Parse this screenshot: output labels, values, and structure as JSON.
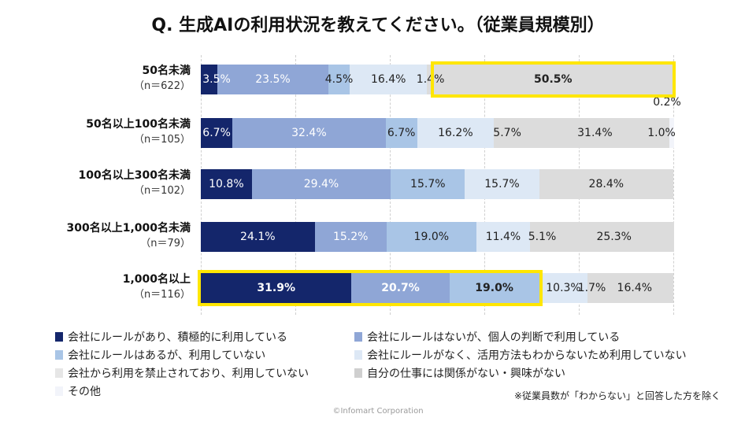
{
  "title": "Q. 生成AIの利用状況を教えてください。（従業員規模別）",
  "note": "※従業員数が「わからない」と回答した方を除く",
  "copyright": "©Infomart Corporation",
  "colors": [
    "#14266b",
    "#8fa6d6",
    "#a9c5e6",
    "#dde8f5",
    "#dcdcdc",
    "#dcdcdc",
    "#f2f4fa"
  ],
  "chart_data": {
    "type": "bar",
    "orientation": "horizontal-stacked-100",
    "categories": [
      {
        "label": "50名未満",
        "n": "（n＝622）"
      },
      {
        "label": "50名以上100名未満",
        "n": "（n＝105）"
      },
      {
        "label": "100名以上300名未満",
        "n": "（n＝102）"
      },
      {
        "label": "300名以上1,000名未満",
        "n": "（n＝79）"
      },
      {
        "label": "1,000名以上",
        "n": "（n＝116）"
      }
    ],
    "series": [
      {
        "name": "会社にルールがあり、積極的に利用している",
        "values": [
          3.5,
          6.7,
          10.8,
          24.1,
          31.9
        ],
        "labels": [
          "3.5%",
          "6.7%",
          "10.8%",
          "24.1%",
          "31.9%"
        ]
      },
      {
        "name": "会社にルールはないが、個人の判断で利用している",
        "values": [
          23.5,
          32.4,
          29.4,
          15.2,
          20.7
        ],
        "labels": [
          "23.5%",
          "32.4%",
          "29.4%",
          "15.2%",
          "20.7%"
        ]
      },
      {
        "name": "会社にルールはあるが、利用していない",
        "values": [
          4.5,
          6.7,
          15.7,
          19.0,
          19.0
        ],
        "labels": [
          "4.5%",
          "6.7%",
          "15.7%",
          "19.0%",
          "19.0%"
        ]
      },
      {
        "name": "会社にルールがなく、活用方法もわからないため利用していない",
        "values": [
          16.4,
          16.2,
          15.7,
          11.4,
          10.3
        ],
        "labels": [
          "16.4%",
          "16.2%",
          "15.7%",
          "11.4%",
          "10.3%"
        ]
      },
      {
        "name": "会社から利用を禁止されており、利用していない",
        "values": [
          1.4,
          5.7,
          0,
          5.1,
          1.7
        ],
        "labels": [
          "1.4%",
          "5.7%",
          "",
          "5.1%",
          "1.7%"
        ]
      },
      {
        "name": "自分の仕事には関係がない・興味がない",
        "values": [
          50.5,
          31.4,
          28.4,
          25.3,
          16.4
        ],
        "labels": [
          "50.5%",
          "31.4%",
          "28.4%",
          "25.3%",
          "16.4%"
        ]
      },
      {
        "name": "その他",
        "values": [
          0.2,
          1.0,
          0,
          0,
          0
        ],
        "labels": [
          "0.2%",
          "1.0%",
          "",
          "",
          ""
        ]
      }
    ],
    "xlim": [
      0,
      100
    ],
    "grid": true,
    "legend_position": "bottom",
    "highlights": [
      {
        "row": 0,
        "series_from": 5,
        "series_to": 5
      },
      {
        "row": 4,
        "series_from": 0,
        "series_to": 2
      }
    ]
  }
}
